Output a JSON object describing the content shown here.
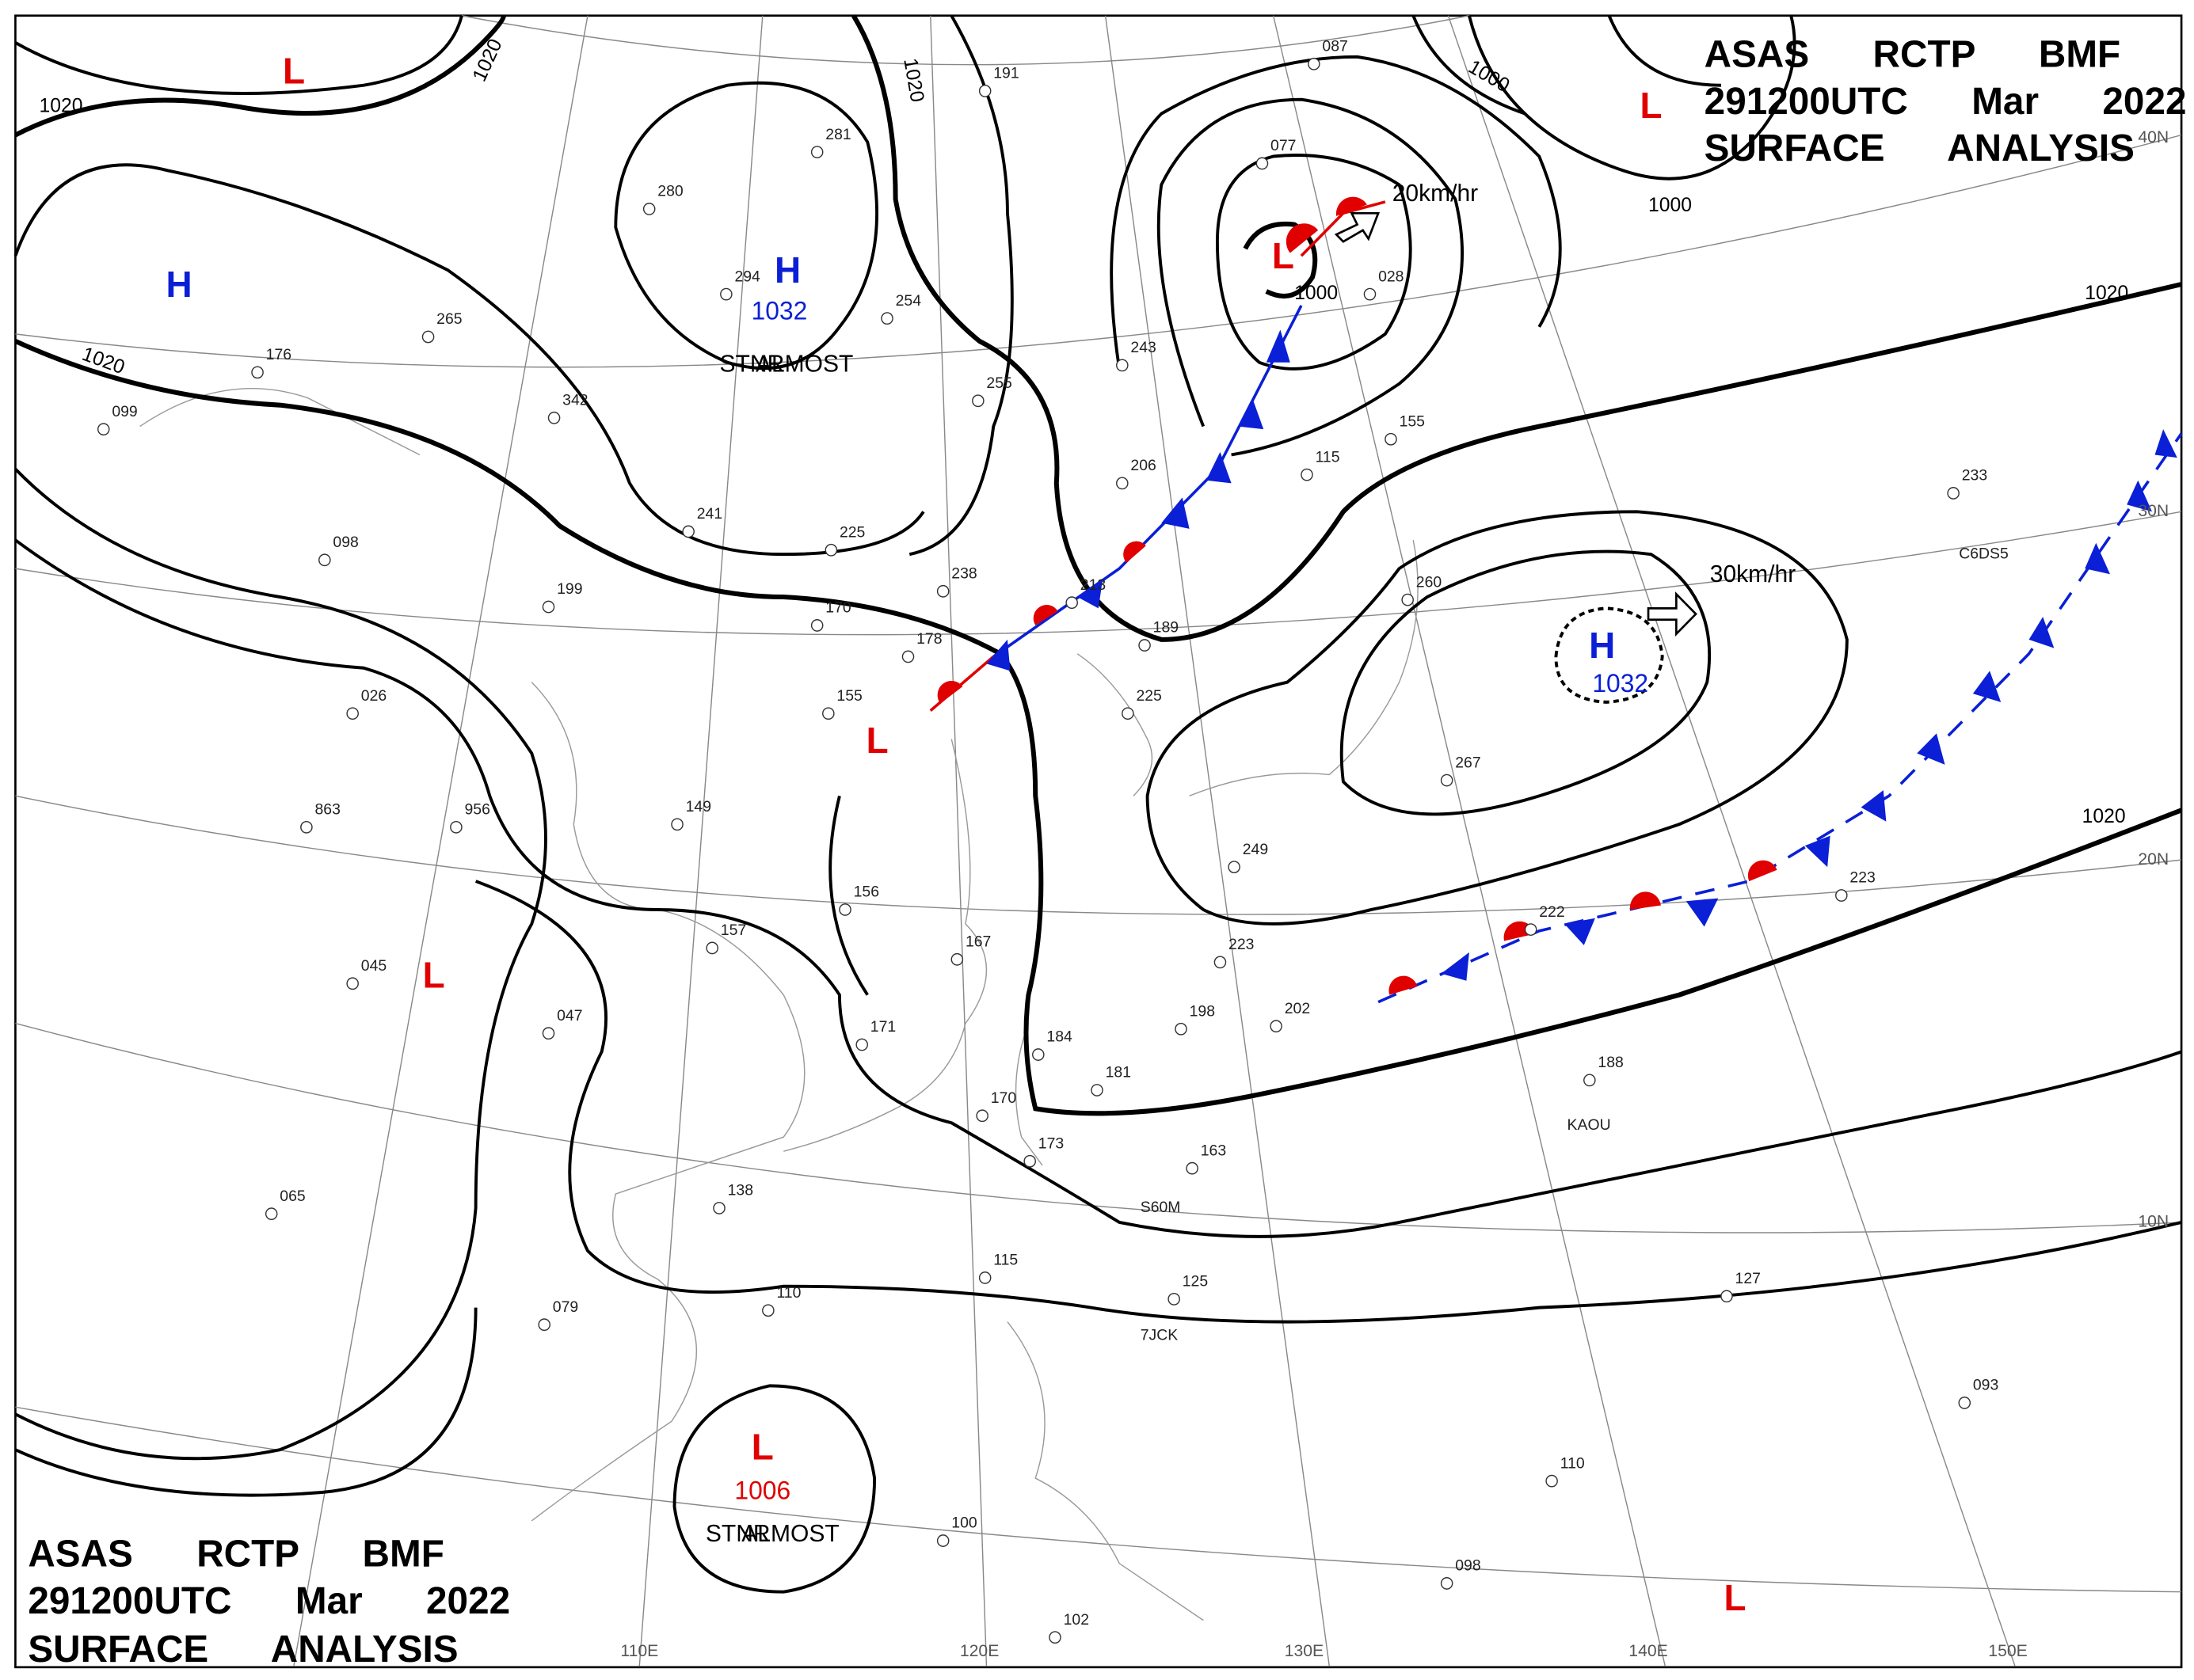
{
  "header_top": {
    "lines": [
      "ASAS RCTP BMF",
      "291200UTC Mar 2022",
      "SURFACE ANALYSIS"
    ]
  },
  "header_bottom": {
    "lines": [
      "ASAS RCTP BMF",
      "291200UTC Mar 2022",
      "SURFACE ANALYSIS"
    ]
  },
  "pressure_centers": [
    {
      "type": "L"
    },
    {
      "type": "H"
    },
    {
      "type": "H",
      "pressure": "1032",
      "motion": "ALMOST STNR"
    },
    {
      "type": "L",
      "pressure": "1000",
      "motion": "20km/hr"
    },
    {
      "type": "L"
    },
    {
      "type": "H",
      "pressure": "1032",
      "motion": "30km/hr"
    },
    {
      "type": "L"
    },
    {
      "type": "L"
    },
    {
      "type": "L",
      "pressure": "1006",
      "motion": "ALMOST STNR"
    },
    {
      "type": "L"
    }
  ],
  "isobar_labels": [
    "1020",
    "1020",
    "1020",
    "1020",
    "1000",
    "1000",
    "1020",
    "1020"
  ],
  "latitude_labels": [
    "40N",
    "30N",
    "20N",
    "10N"
  ],
  "longitude_labels": [
    "110E",
    "120E",
    "130E",
    "140E",
    "150E"
  ],
  "station_ids": [
    "KAOU",
    "S60M",
    "7JCK",
    "C6DS5"
  ],
  "station_values": [
    "265",
    "342",
    "241",
    "225",
    "238",
    "170",
    "178",
    "155",
    "149",
    "157",
    "156",
    "167",
    "171",
    "184",
    "181",
    "170",
    "173",
    "198",
    "202",
    "223",
    "222",
    "223",
    "188",
    "163",
    "138",
    "110",
    "115",
    "125",
    "100",
    "079",
    "065",
    "956",
    "863",
    "045",
    "047",
    "199",
    "098",
    "026",
    "176",
    "099",
    "280",
    "281",
    "294",
    "254",
    "255",
    "243",
    "206",
    "213",
    "189",
    "225",
    "077",
    "028",
    "115",
    "155",
    "260",
    "267",
    "249",
    "233",
    "127",
    "093",
    "110",
    "098",
    "102",
    "191",
    "087"
  ]
}
